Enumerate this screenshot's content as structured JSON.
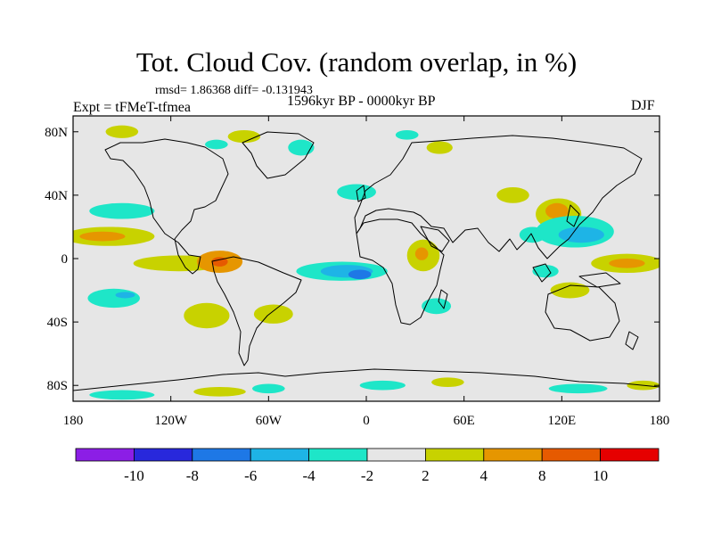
{
  "title": "Tot. Cloud Cov. (random overlap, in %)",
  "stats": "rmsd= 1.86368 diff= -0.131943",
  "experiment": "Expt = tFMeT-tfmea",
  "period": "1596kyr BP - 0000kyr BP",
  "season": "DJF",
  "map": {
    "projection": "cylindrical equidistant",
    "lon_range": [
      -180,
      180
    ],
    "lat_range": [
      -90,
      90
    ],
    "background_color": "#e6e6e6",
    "lat_ticks": [
      {
        "lat": 80,
        "label": "80N"
      },
      {
        "lat": 40,
        "label": "40N"
      },
      {
        "lat": 0,
        "label": "0"
      },
      {
        "lat": -40,
        "label": "40S"
      },
      {
        "lat": -80,
        "label": "80S"
      }
    ],
    "lon_ticks": [
      {
        "lon": -180,
        "label": "180"
      },
      {
        "lon": -120,
        "label": "120W"
      },
      {
        "lon": -60,
        "label": "60W"
      },
      {
        "lon": 0,
        "label": "0"
      },
      {
        "lon": 60,
        "label": "60E"
      },
      {
        "lon": 120,
        "label": "120E"
      },
      {
        "lon": 180,
        "label": "180"
      }
    ],
    "anomalies": [
      {
        "lon": -150,
        "lat": 30,
        "rlon": 20,
        "rlat": 5,
        "value": -3
      },
      {
        "lon": -158,
        "lat": 14,
        "rlon": 28,
        "rlat": 6,
        "value": 3
      },
      {
        "lon": -162,
        "lat": 14,
        "rlon": 14,
        "rlat": 3,
        "value": 6
      },
      {
        "lon": -155,
        "lat": -25,
        "rlon": 16,
        "rlat": 6,
        "value": -3
      },
      {
        "lon": -148,
        "lat": -23,
        "rlon": 6,
        "rlat": 2,
        "value": -5
      },
      {
        "lon": -115,
        "lat": -3,
        "rlon": 28,
        "rlat": 5,
        "value": 3
      },
      {
        "lon": -90,
        "lat": -2,
        "rlon": 14,
        "rlat": 7,
        "value": 6
      },
      {
        "lon": -90,
        "lat": -2,
        "rlon": 5,
        "rlat": 3,
        "value": 9
      },
      {
        "lon": -98,
        "lat": -36,
        "rlon": 14,
        "rlat": 8,
        "value": 3
      },
      {
        "lon": -57,
        "lat": -35,
        "rlon": 12,
        "rlat": 6,
        "value": 3
      },
      {
        "lon": -15,
        "lat": -8,
        "rlon": 28,
        "rlat": 6,
        "value": -3
      },
      {
        "lon": -12,
        "lat": -8,
        "rlon": 16,
        "rlat": 4,
        "value": -5
      },
      {
        "lon": -4,
        "lat": -10,
        "rlon": 7,
        "rlat": 3,
        "value": -7
      },
      {
        "lon": 35,
        "lat": 2,
        "rlon": 10,
        "rlat": 10,
        "value": 3
      },
      {
        "lon": 34,
        "lat": 3,
        "rlon": 4,
        "rlat": 4,
        "value": 6
      },
      {
        "lon": 43,
        "lat": -30,
        "rlon": 9,
        "rlat": 5,
        "value": -3
      },
      {
        "lon": -6,
        "lat": 42,
        "rlon": 12,
        "rlat": 5,
        "value": -3
      },
      {
        "lon": 118,
        "lat": 28,
        "rlon": 14,
        "rlat": 10,
        "value": 3
      },
      {
        "lon": 117,
        "lat": 30,
        "rlon": 7,
        "rlat": 5,
        "value": 6
      },
      {
        "lon": 128,
        "lat": 17,
        "rlon": 24,
        "rlat": 10,
        "value": -3
      },
      {
        "lon": 132,
        "lat": 15,
        "rlon": 14,
        "rlat": 5,
        "value": -5
      },
      {
        "lon": 102,
        "lat": 15,
        "rlon": 8,
        "rlat": 5,
        "value": -3
      },
      {
        "lon": 160,
        "lat": -3,
        "rlon": 22,
        "rlat": 6,
        "value": 3
      },
      {
        "lon": 160,
        "lat": -3,
        "rlon": 11,
        "rlat": 3,
        "value": 6
      },
      {
        "lon": 125,
        "lat": -20,
        "rlon": 12,
        "rlat": 5,
        "value": 3
      },
      {
        "lon": 110,
        "lat": -8,
        "rlon": 8,
        "rlat": 4,
        "value": -3
      },
      {
        "lon": 90,
        "lat": 40,
        "rlon": 10,
        "rlat": 5,
        "value": 3
      },
      {
        "lon": 45,
        "lat": 70,
        "rlon": 8,
        "rlat": 4,
        "value": 3
      },
      {
        "lon": 25,
        "lat": 78,
        "rlon": 7,
        "rlat": 3,
        "value": -3
      },
      {
        "lon": -40,
        "lat": 70,
        "rlon": 8,
        "rlat": 5,
        "value": -3
      },
      {
        "lon": -75,
        "lat": 77,
        "rlon": 10,
        "rlat": 4,
        "value": 3
      },
      {
        "lon": -150,
        "lat": 80,
        "rlon": 10,
        "rlat": 4,
        "value": 3
      },
      {
        "lon": -92,
        "lat": 72,
        "rlon": 7,
        "rlat": 3,
        "value": -3
      },
      {
        "lon": -150,
        "lat": -86,
        "rlon": 20,
        "rlat": 3,
        "value": -3
      },
      {
        "lon": -90,
        "lat": -84,
        "rlon": 16,
        "rlat": 3,
        "value": 3
      },
      {
        "lon": -60,
        "lat": -82,
        "rlon": 10,
        "rlat": 3,
        "value": -3
      },
      {
        "lon": 10,
        "lat": -80,
        "rlon": 14,
        "rlat": 3,
        "value": -3
      },
      {
        "lon": 50,
        "lat": -78,
        "rlon": 10,
        "rlat": 3,
        "value": 3
      },
      {
        "lon": 130,
        "lat": -82,
        "rlon": 18,
        "rlat": 3,
        "value": -3
      },
      {
        "lon": 170,
        "lat": -80,
        "rlon": 10,
        "rlat": 3,
        "value": 3
      }
    ]
  },
  "colorbar": {
    "levels": [
      "-10",
      "-8",
      "-6",
      "-4",
      "-2",
      "2",
      "4",
      "8",
      "10"
    ],
    "colors": [
      "#8c1ee6",
      "#2828dc",
      "#1e78e6",
      "#1eb4e6",
      "#1ee6c8",
      "#e6e6e6",
      "#c8d200",
      "#e69600",
      "#e65a00",
      "#e60000"
    ]
  }
}
